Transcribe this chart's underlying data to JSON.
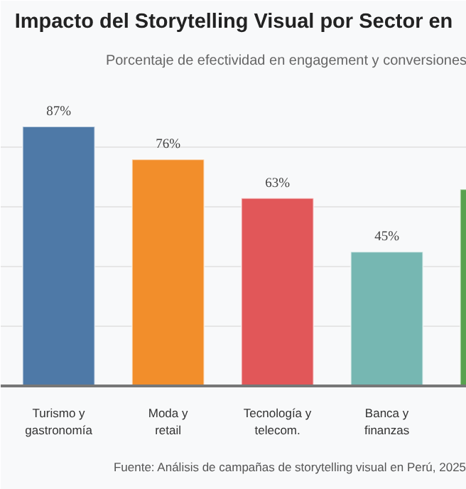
{
  "chart_data": {
    "type": "bar",
    "title": "Impacto del Storytelling Visual por Sector en",
    "subtitle": "Porcentaje de efectividad en engagement y conversiones",
    "categories": [
      "Turismo y\ngastronomía",
      "Moda y\nretail",
      "Tecnología y\ntelecom.",
      "Banca y\nfinanzas",
      null
    ],
    "values": [
      87,
      76,
      63,
      45,
      66
    ],
    "colors": [
      "#4e79a7",
      "#f28e2b",
      "#e15759",
      "#76b7b2",
      "#59a14f"
    ],
    "value_labels": [
      "87%",
      "76%",
      "63%",
      "45%",
      null
    ],
    "ylim": [
      0,
      103
    ],
    "yticks": [
      {
        "value": 20,
        "label": null
      },
      {
        "value": 40,
        "label": null
      },
      {
        "value": 60,
        "label": null
      },
      {
        "value": 80,
        "label": null
      }
    ],
    "grid": "y",
    "tick_labels": "x",
    "annotations": [
      "Fuente: Análisis de campañas de storytelling visual en Perú, 2025"
    ]
  }
}
